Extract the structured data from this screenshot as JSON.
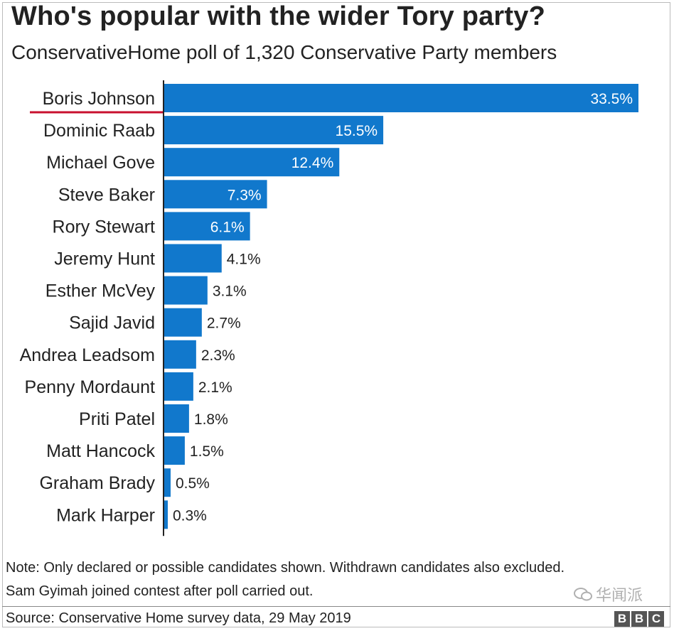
{
  "title": "Who's popular with the wider Tory party?",
  "subtitle": "ConservativeHome poll of 1,320 Conservative Party members",
  "notes": [
    "Note: Only declared or possible candidates shown. Withdrawn candidates also excluded.",
    "Sam Gyimah joined contest after poll carried out."
  ],
  "source": "Source: Conservative Home survey data, 29 May 2019",
  "logo": [
    "B",
    "B",
    "C"
  ],
  "watermark": "华闻派",
  "colors": {
    "bar": "#1178cc",
    "highlight_underline": "#c8102e",
    "text": "#222222",
    "axis": "#222222"
  },
  "chart_data": {
    "type": "bar",
    "orientation": "horizontal",
    "categories": [
      "Boris Johnson",
      "Dominic Raab",
      "Michael Gove",
      "Steve Baker",
      "Rory Stewart",
      "Jeremy Hunt",
      "Esther McVey",
      "Sajid Javid",
      "Andrea Leadsom",
      "Penny Mordaunt",
      "Priti Patel",
      "Matt Hancock",
      "Graham Brady",
      "Mark Harper"
    ],
    "values": [
      33.5,
      15.5,
      12.4,
      7.3,
      6.1,
      4.1,
      3.1,
      2.7,
      2.3,
      2.1,
      1.8,
      1.5,
      0.5,
      0.3
    ],
    "labels": [
      "33.5%",
      "15.5%",
      "12.4%",
      "7.3%",
      "6.1%",
      "4.1%",
      "3.1%",
      "2.7%",
      "2.3%",
      "2.1%",
      "1.8%",
      "1.5%",
      "0.5%",
      "0.3%"
    ],
    "highlighted": "Boris Johnson",
    "xlim": [
      0,
      33.5
    ],
    "grid": false,
    "legend": "none"
  }
}
